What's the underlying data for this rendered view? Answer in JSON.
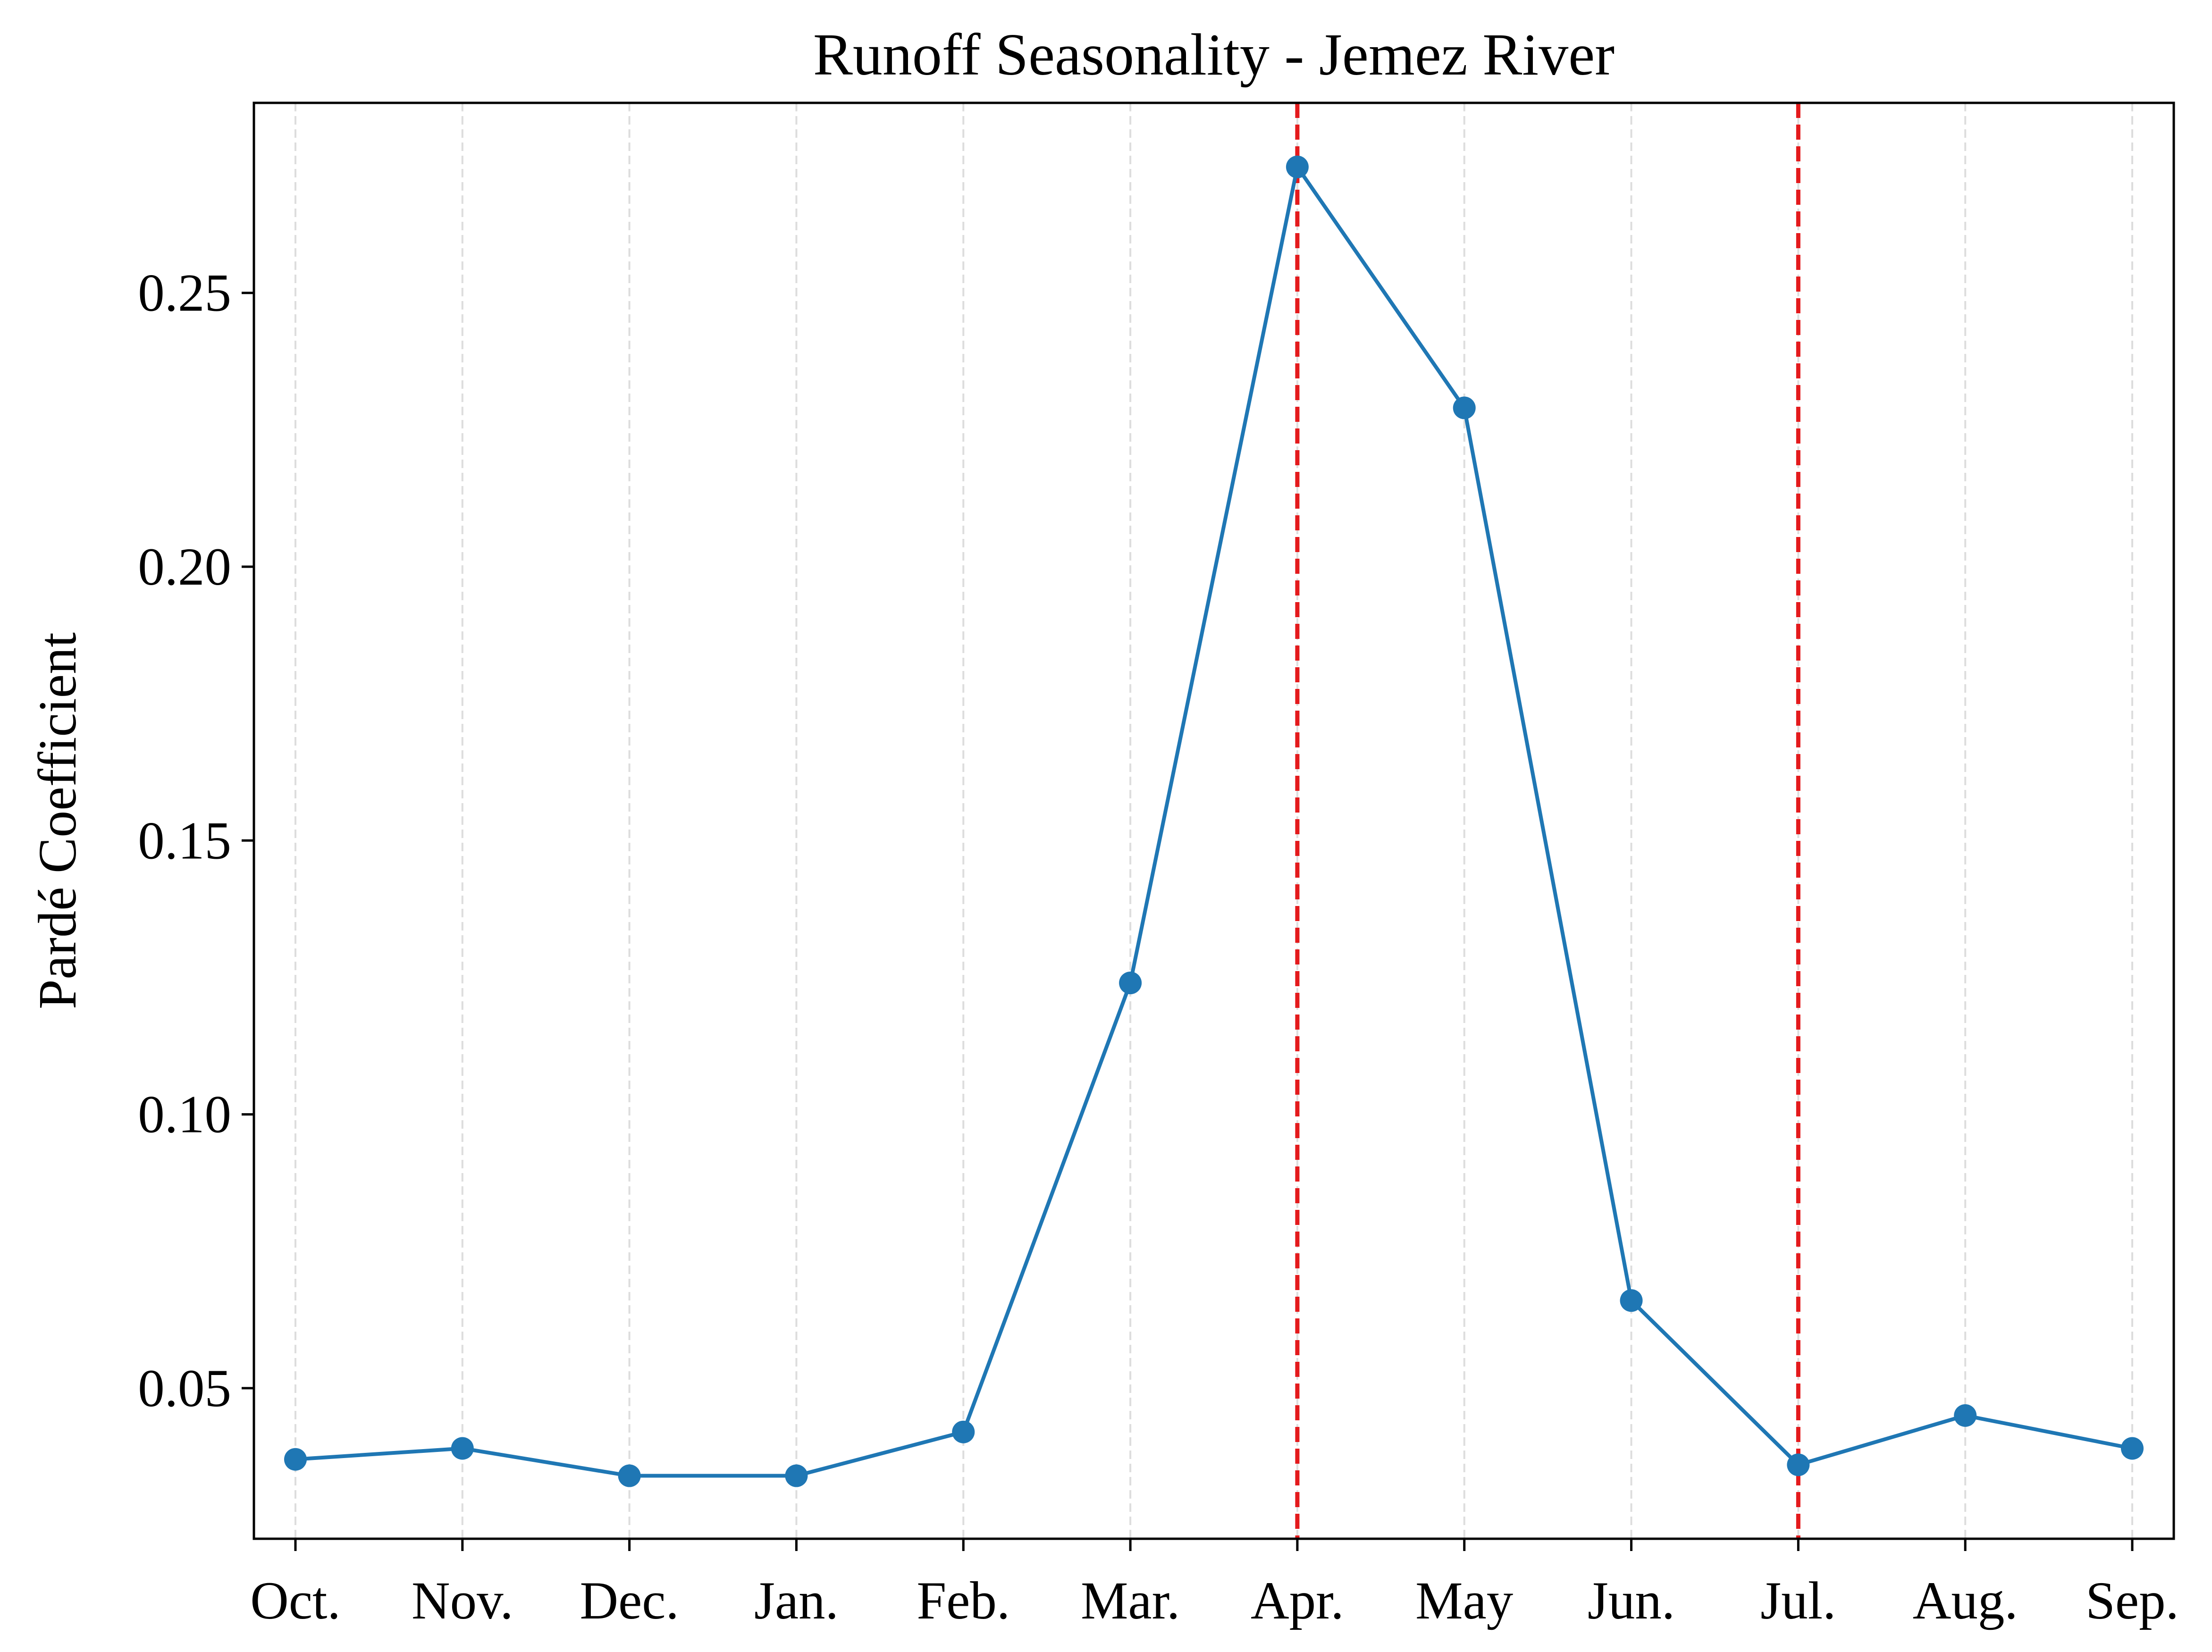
{
  "chart_data": {
    "type": "line",
    "title": "Runoff Seasonality - Jemez River",
    "xlabel": "",
    "ylabel": "Pardé Coefficient",
    "categories": [
      "Oct.",
      "Nov.",
      "Dec.",
      "Jan.",
      "Feb.",
      "Mar.",
      "Apr.",
      "May",
      "Jun.",
      "Jul.",
      "Aug.",
      "Sep."
    ],
    "series": [
      {
        "values": [
          0.037,
          0.039,
          0.034,
          0.034,
          0.042,
          0.124,
          0.273,
          0.229,
          0.066,
          0.036,
          0.045,
          0.039
        ],
        "color": "#1f77b4",
        "marker": "circle"
      }
    ],
    "yticks": [
      {
        "value": 0.05,
        "label": "0.05"
      },
      {
        "value": 0.1,
        "label": "0.10"
      },
      {
        "value": 0.15,
        "label": "0.15"
      },
      {
        "value": 0.2,
        "label": "0.20"
      },
      {
        "value": 0.25,
        "label": "0.25"
      }
    ],
    "ylim": [
      0.0225,
      0.2847
    ],
    "vertical_reference_lines": [
      {
        "category": "Apr.",
        "color": "#e41a1c",
        "style": "dashed"
      },
      {
        "category": "Jul.",
        "color": "#e41a1c",
        "style": "dashed"
      }
    ],
    "grid": {
      "x": true,
      "y": false,
      "style": "dashed",
      "color": "#dddddd"
    },
    "legend": "none"
  }
}
